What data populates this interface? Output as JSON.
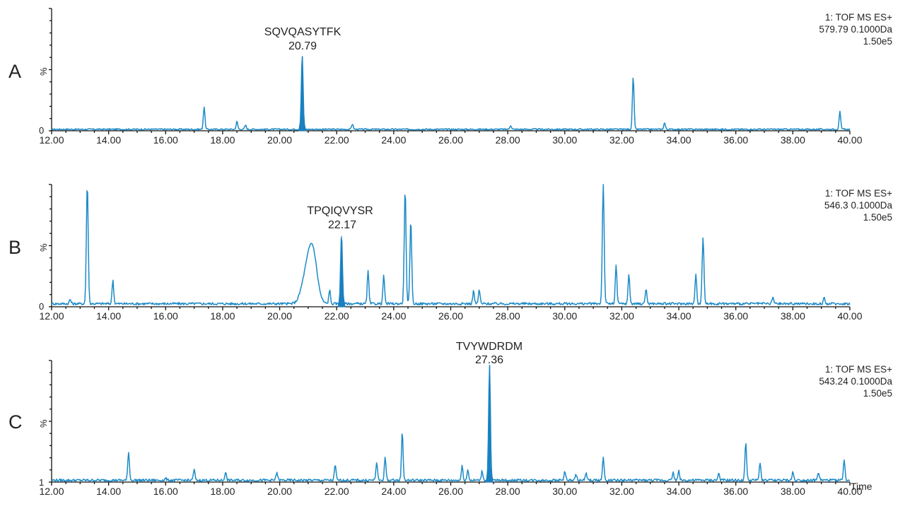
{
  "figure": {
    "x_axis_label": "Time",
    "x_ticks": [
      "12.00",
      "14.00",
      "16.00",
      "18.00",
      "20.00",
      "22.00",
      "24.00",
      "26.00",
      "28.00",
      "30.00",
      "32.00",
      "34.00",
      "36.00",
      "38.00",
      "40.00"
    ],
    "panels": [
      {
        "letter": "A",
        "y_label": "%",
        "y_min_label": "0",
        "annotation_peptide": "SQVQASYTFK",
        "annotation_rt": "20.79",
        "info_line1": "1: TOF MS ES+",
        "info_line2": "579.79 0.1000Da",
        "info_line3": "1.50e5"
      },
      {
        "letter": "B",
        "y_label": "%",
        "y_min_label": "0",
        "annotation_peptide": "TPQIQVYSR",
        "annotation_rt": "22.17",
        "info_line1": "1: TOF MS ES+",
        "info_line2": "546.3 0.1000Da",
        "info_line3": "1.50e5"
      },
      {
        "letter": "C",
        "y_label": "%",
        "y_min_label": "1",
        "annotation_peptide": "TVYWDRDM",
        "annotation_rt": "27.36",
        "info_line1": "1: TOF MS ES+",
        "info_line2": "543.24 0.1000Da",
        "info_line3": "1.50e5"
      }
    ],
    "colors": {
      "trace": "#1b8ac7",
      "highlight_fill": "#1b7fc0",
      "axis": "#111111"
    }
  },
  "chart_data": [
    {
      "type": "line",
      "title": "A — Extracted ion chromatogram, 1: TOF MS ES+ 579.79 0.1000Da, 1.50e5",
      "xlabel": "Time",
      "ylabel": "%",
      "xlim": [
        12.0,
        40.0
      ],
      "ylim": [
        0,
        100
      ],
      "grid": false,
      "legend": "none",
      "annotations": [
        {
          "label": "SQVQASYTFK",
          "x": 20.79,
          "y": 61,
          "filled": true
        }
      ],
      "peaks": [
        {
          "x": 17.35,
          "y": 19
        },
        {
          "x": 18.5,
          "y": 7
        },
        {
          "x": 18.8,
          "y": 4
        },
        {
          "x": 20.79,
          "y": 61
        },
        {
          "x": 22.55,
          "y": 5
        },
        {
          "x": 28.1,
          "y": 4
        },
        {
          "x": 32.4,
          "y": 44
        },
        {
          "x": 33.5,
          "y": 6
        },
        {
          "x": 39.65,
          "y": 15
        }
      ]
    },
    {
      "type": "line",
      "title": "B — Extracted ion chromatogram, 1: TOF MS ES+ 546.3 0.1000Da, 1.50e5",
      "xlabel": "Time",
      "ylabel": "%",
      "xlim": [
        12.0,
        40.0
      ],
      "ylim": [
        0,
        100
      ],
      "grid": false,
      "legend": "none",
      "annotations": [
        {
          "label": "TPQIQVYSR",
          "x": 22.17,
          "y": 58,
          "filled": true
        }
      ],
      "peaks": [
        {
          "x": 12.65,
          "y": 5
        },
        {
          "x": 13.25,
          "y": 100
        },
        {
          "x": 14.15,
          "y": 21
        },
        {
          "x": 20.9,
          "y": 20
        },
        {
          "x": 21.15,
          "y": 45
        },
        {
          "x": 21.75,
          "y": 13
        },
        {
          "x": 22.17,
          "y": 58
        },
        {
          "x": 23.1,
          "y": 28
        },
        {
          "x": 23.65,
          "y": 25
        },
        {
          "x": 24.4,
          "y": 95
        },
        {
          "x": 24.6,
          "y": 70
        },
        {
          "x": 26.8,
          "y": 12
        },
        {
          "x": 27.0,
          "y": 13
        },
        {
          "x": 31.35,
          "y": 100
        },
        {
          "x": 31.8,
          "y": 33
        },
        {
          "x": 32.25,
          "y": 26
        },
        {
          "x": 32.85,
          "y": 14
        },
        {
          "x": 34.6,
          "y": 26
        },
        {
          "x": 34.85,
          "y": 56
        },
        {
          "x": 37.3,
          "y": 7
        },
        {
          "x": 39.1,
          "y": 6
        }
      ]
    },
    {
      "type": "line",
      "title": "C — Extracted ion chromatogram, 1: TOF MS ES+ 543.24 0.1000Da, 1.50e5",
      "xlabel": "Time",
      "ylabel": "%",
      "xlim": [
        12.0,
        40.0
      ],
      "ylim": [
        1,
        100
      ],
      "grid": false,
      "legend": "none",
      "annotations": [
        {
          "label": "TVYWDRDM",
          "x": 27.36,
          "y": 95,
          "filled": true
        }
      ],
      "peaks": [
        {
          "x": 14.7,
          "y": 25
        },
        {
          "x": 16.0,
          "y": 3
        },
        {
          "x": 17.0,
          "y": 10
        },
        {
          "x": 18.1,
          "y": 8
        },
        {
          "x": 19.9,
          "y": 8
        },
        {
          "x": 21.95,
          "y": 14
        },
        {
          "x": 23.4,
          "y": 16
        },
        {
          "x": 23.7,
          "y": 20
        },
        {
          "x": 24.3,
          "y": 41
        },
        {
          "x": 26.4,
          "y": 13
        },
        {
          "x": 26.6,
          "y": 10
        },
        {
          "x": 27.1,
          "y": 9
        },
        {
          "x": 27.36,
          "y": 95
        },
        {
          "x": 30.0,
          "y": 9
        },
        {
          "x": 30.4,
          "y": 6
        },
        {
          "x": 30.75,
          "y": 7
        },
        {
          "x": 31.35,
          "y": 20
        },
        {
          "x": 33.8,
          "y": 8
        },
        {
          "x": 34.0,
          "y": 9
        },
        {
          "x": 35.4,
          "y": 7
        },
        {
          "x": 36.35,
          "y": 33
        },
        {
          "x": 36.85,
          "y": 16
        },
        {
          "x": 38.0,
          "y": 8
        },
        {
          "x": 38.9,
          "y": 8
        },
        {
          "x": 39.8,
          "y": 18
        }
      ]
    }
  ]
}
